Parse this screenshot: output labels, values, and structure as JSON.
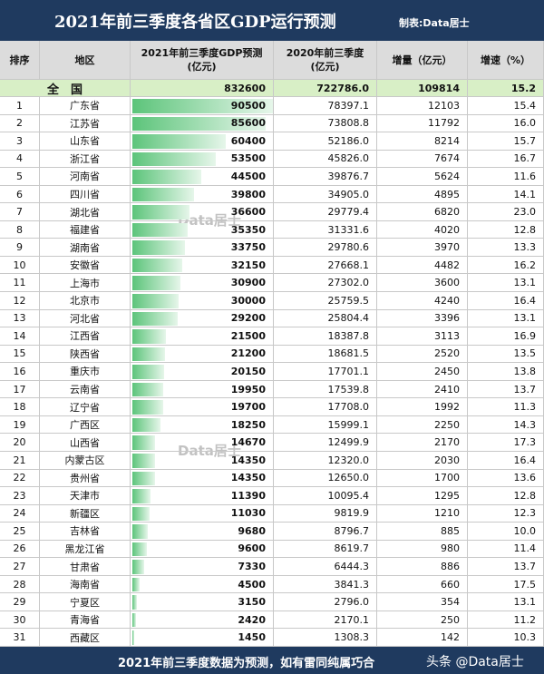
{
  "header": {
    "title": "2021年前三季度各省区GDP运行预测",
    "credit": "制表:Data居士"
  },
  "table": {
    "columns": [
      [
        "排序"
      ],
      [
        "地区"
      ],
      [
        "2021年前三季度GDP预测",
        "(亿元)"
      ],
      [
        "2020年前三季度",
        "(亿元)"
      ],
      [
        "增量（亿元）"
      ],
      [
        "增速（%）"
      ]
    ],
    "total": [
      "全　国",
      832600,
      "722786.0",
      109814,
      "15.2"
    ],
    "rows": [
      [
        1,
        "广东省",
        90500,
        "78397.1",
        12103,
        "15.4"
      ],
      [
        2,
        "江苏省",
        85600,
        "73808.8",
        11792,
        "16.0"
      ],
      [
        3,
        "山东省",
        60400,
        "52186.0",
        8214,
        "15.7"
      ],
      [
        4,
        "浙江省",
        53500,
        "45826.0",
        7674,
        "16.7"
      ],
      [
        5,
        "河南省",
        44500,
        "39876.7",
        5624,
        "11.6"
      ],
      [
        6,
        "四川省",
        39800,
        "34905.0",
        4895,
        "14.1"
      ],
      [
        7,
        "湖北省",
        36600,
        "29779.4",
        6820,
        "23.0"
      ],
      [
        8,
        "福建省",
        35350,
        "31331.6",
        4020,
        "12.8"
      ],
      [
        9,
        "湖南省",
        33750,
        "29780.6",
        3970,
        "13.3"
      ],
      [
        10,
        "安徽省",
        32150,
        "27668.1",
        4482,
        "16.2"
      ],
      [
        11,
        "上海市",
        30900,
        "27302.0",
        3600,
        "13.1"
      ],
      [
        12,
        "北京市",
        30000,
        "25759.5",
        4240,
        "16.4"
      ],
      [
        13,
        "河北省",
        29200,
        "25804.4",
        3396,
        "13.1"
      ],
      [
        14,
        "江西省",
        21500,
        "18387.8",
        3113,
        "16.9"
      ],
      [
        15,
        "陕西省",
        21200,
        "18681.5",
        2520,
        "13.5"
      ],
      [
        16,
        "重庆市",
        20150,
        "17701.1",
        2450,
        "13.8"
      ],
      [
        17,
        "云南省",
        19950,
        "17539.8",
        2410,
        "13.7"
      ],
      [
        18,
        "辽宁省",
        19700,
        "17708.0",
        1992,
        "11.3"
      ],
      [
        19,
        "广西区",
        18250,
        "15999.1",
        2250,
        "14.3"
      ],
      [
        20,
        "山西省",
        14670,
        "12499.9",
        2170,
        "17.3"
      ],
      [
        21,
        "内蒙古区",
        14350,
        "12320.0",
        2030,
        "16.4"
      ],
      [
        22,
        "贵州省",
        14350,
        "12650.0",
        1700,
        "13.6"
      ],
      [
        23,
        "天津市",
        11390,
        "10095.4",
        1295,
        "12.8"
      ],
      [
        24,
        "新疆区",
        11030,
        "9819.9",
        1210,
        "12.3"
      ],
      [
        25,
        "吉林省",
        9680,
        "8796.7",
        885,
        "10.0"
      ],
      [
        26,
        "黑龙江省",
        9600,
        "8619.7",
        980,
        "11.4"
      ],
      [
        27,
        "甘肃省",
        7330,
        "6444.3",
        886,
        "13.7"
      ],
      [
        28,
        "海南省",
        4500,
        "3841.3",
        660,
        "17.5"
      ],
      [
        29,
        "宁夏区",
        3150,
        "2796.0",
        354,
        "13.1"
      ],
      [
        30,
        "青海省",
        2420,
        "2170.1",
        250,
        "11.2"
      ],
      [
        31,
        "西藏区",
        1450,
        "1308.3",
        142,
        "10.3"
      ]
    ]
  },
  "footer": {
    "note": "2021年前三季度数据为预测，如有雷同纯属巧合",
    "watermark": "Data居士",
    "platform": "头条 @Data居士"
  }
}
